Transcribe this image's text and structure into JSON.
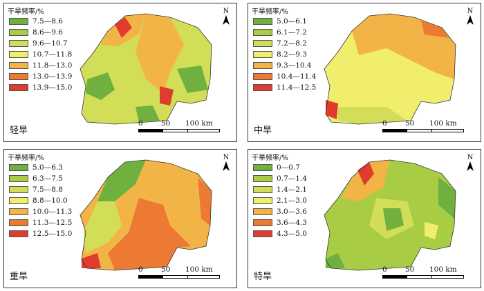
{
  "panels": [
    {
      "name": "light-drought",
      "title": "轻旱",
      "legend_title": "干旱频率/%",
      "legend": [
        {
          "label": "7.5—8.6",
          "color": "#6fb03f"
        },
        {
          "label": "8.6—9.6",
          "color": "#a9cc45"
        },
        {
          "label": "9.6—10.7",
          "color": "#d3de58"
        },
        {
          "label": "10.7—11.8",
          "color": "#f1ee6e"
        },
        {
          "label": "11.8—13.0",
          "color": "#f3b447"
        },
        {
          "label": "13.0—13.9",
          "color": "#ec7a33"
        },
        {
          "label": "13.9—15.0",
          "color": "#e03c2e"
        }
      ]
    },
    {
      "name": "moderate-drought",
      "title": "中旱",
      "legend_title": "干旱频率/%",
      "legend": [
        {
          "label": "5.0—6.1",
          "color": "#6fb03f"
        },
        {
          "label": "6.1—7.2",
          "color": "#a9cc45"
        },
        {
          "label": "7.2—8.2",
          "color": "#d3de58"
        },
        {
          "label": "8.2—9.3",
          "color": "#f1ee6e"
        },
        {
          "label": "9.3—10.4",
          "color": "#f3b447"
        },
        {
          "label": "10.4—11.4",
          "color": "#ec7a33"
        },
        {
          "label": "11.4—12.5",
          "color": "#e03c2e"
        }
      ]
    },
    {
      "name": "severe-drought",
      "title": "重旱",
      "legend_title": "干旱频率/%",
      "legend": [
        {
          "label": "5.0—6.3",
          "color": "#6fb03f"
        },
        {
          "label": "6.3—7.5",
          "color": "#a9cc45"
        },
        {
          "label": "7.5—8.8",
          "color": "#d3de58"
        },
        {
          "label": "8.8—10.0",
          "color": "#f1ee6e"
        },
        {
          "label": "10.0—11.3",
          "color": "#f3b447"
        },
        {
          "label": "11.3—12.5",
          "color": "#ec7a33"
        },
        {
          "label": "12.5—15.0",
          "color": "#e03c2e"
        }
      ]
    },
    {
      "name": "extreme-drought",
      "title": "特旱",
      "legend_title": "干旱频率/%",
      "legend": [
        {
          "label": "0—0.7",
          "color": "#6fb03f"
        },
        {
          "label": "0.7—1.4",
          "color": "#a9cc45"
        },
        {
          "label": "1.4—2.1",
          "color": "#d3de58"
        },
        {
          "label": "2.1—3.0",
          "color": "#f1ee6e"
        },
        {
          "label": "3.0—3.6",
          "color": "#f3b447"
        },
        {
          "label": "3.6—4.3",
          "color": "#ec7a33"
        },
        {
          "label": "4.3—5.0",
          "color": "#e03c2e"
        }
      ]
    }
  ],
  "north_label": "N",
  "scale": {
    "tick0": "0",
    "tick1": "50",
    "tick2": "100 km"
  }
}
